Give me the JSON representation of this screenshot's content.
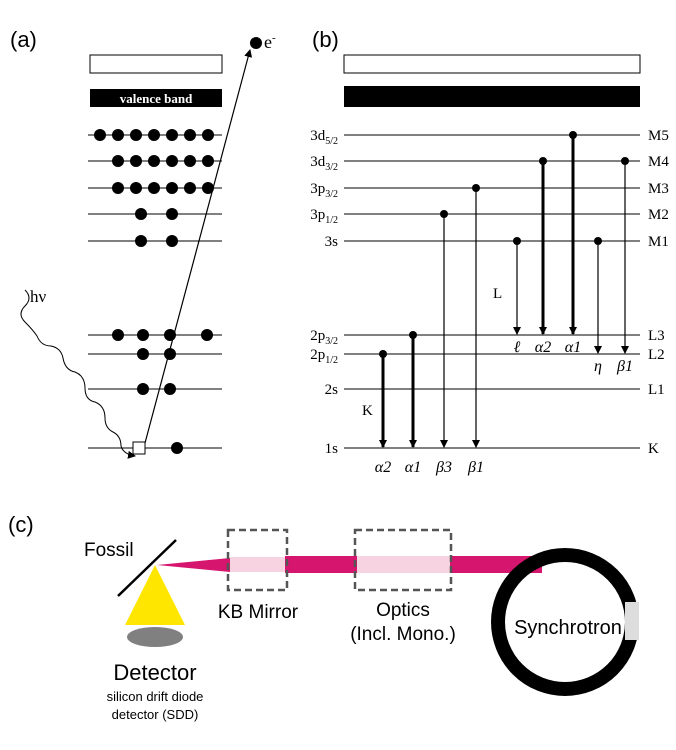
{
  "panels": {
    "a": {
      "label": "(a)",
      "band": "valence band",
      "electron": {
        "main": "e",
        "sup": "-"
      },
      "photon": "hν"
    },
    "b": {
      "label": "(b)",
      "levels": [
        {
          "name": {
            "main": "3d",
            "sub": "5/2"
          },
          "shell": "M5"
        },
        {
          "name": {
            "main": "3d",
            "sub": "3/2"
          },
          "shell": "M4"
        },
        {
          "name": {
            "main": "3p",
            "sub": "3/2"
          },
          "shell": "M3"
        },
        {
          "name": {
            "main": "3p",
            "sub": "1/2"
          },
          "shell": "M2"
        },
        {
          "name": {
            "main": "3s"
          },
          "shell": "M1"
        },
        {
          "name": {
            "main": "2p",
            "sub": "3/2"
          },
          "shell": "L3"
        },
        {
          "name": {
            "main": "2p",
            "sub": "1/2"
          },
          "shell": "L2"
        },
        {
          "name": {
            "main": "2s"
          },
          "shell": "L1"
        },
        {
          "name": {
            "main": "1s"
          },
          "shell": "K"
        }
      ],
      "series_K": {
        "label": "K",
        "lines": [
          "α2",
          "α1",
          "β3",
          "β1"
        ]
      },
      "series_L": {
        "label": "L",
        "lines": [
          "ℓ",
          "α2",
          "α1",
          "η",
          "β1"
        ]
      }
    },
    "c": {
      "label": "(c)",
      "sample": "Fossil",
      "mirror": "KB Mirror",
      "optics": "Optics",
      "optics_note": "(Incl. Mono.)",
      "source": "Synchrotron",
      "detector": "Detector",
      "detector_note": [
        "silicon drift diode",
        "detector (SDD)"
      ]
    }
  }
}
